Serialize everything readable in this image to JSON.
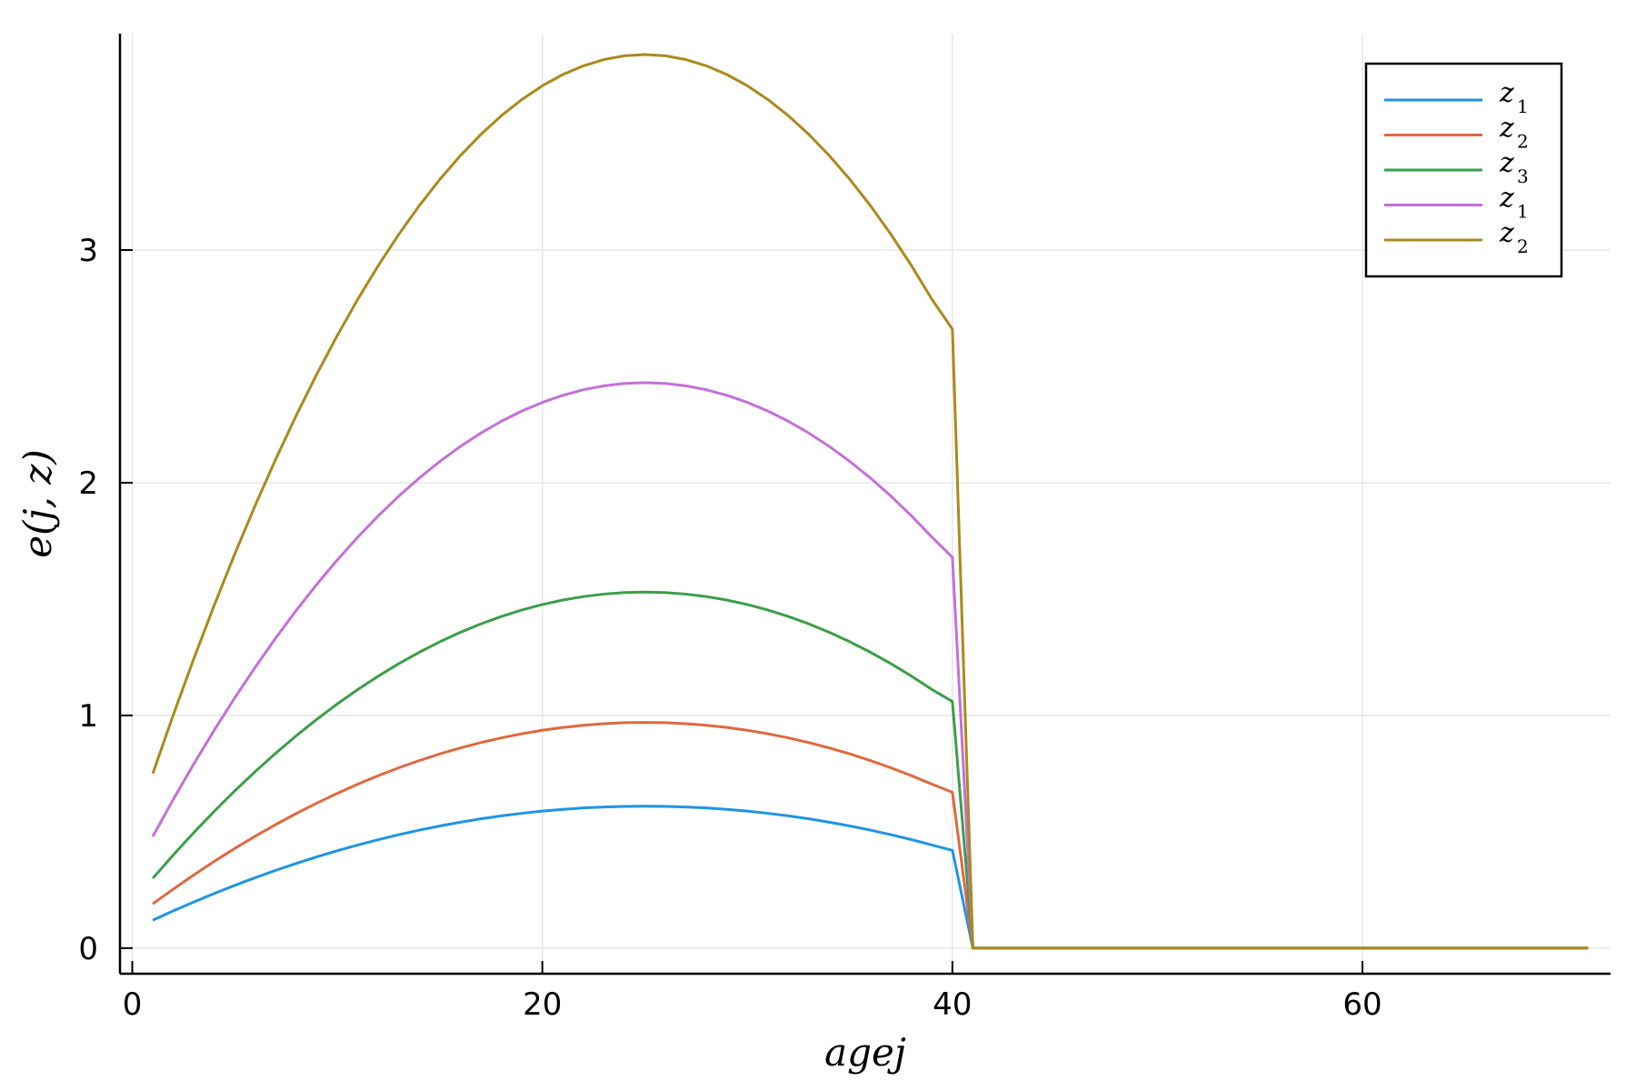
{
  "chart_data": {
    "type": "line",
    "title": "",
    "xlabel": "agej",
    "ylabel": "e(j, z)",
    "xlim": [
      -0.6,
      72.1
    ],
    "ylim": [
      -0.11,
      3.93
    ],
    "xticks": [
      0,
      20,
      40,
      60
    ],
    "yticks": [
      0,
      1,
      2,
      3
    ],
    "grid": true,
    "legend_position": "top-right",
    "x_start": 1,
    "x_step": 1,
    "age_peak": 25,
    "age_last_work": 40,
    "age_end": 71,
    "series": [
      {
        "name": "z",
        "subscript": "1",
        "color": "#1f94e4",
        "start": 0.12,
        "peak": 0.61,
        "at_40": 0.42
      },
      {
        "name": "z",
        "subscript": "2",
        "color": "#e0683e",
        "start": 0.19,
        "peak": 0.97,
        "at_40": 0.67
      },
      {
        "name": "z",
        "subscript": "3",
        "color": "#3b9e4a",
        "start": 0.3,
        "peak": 1.53,
        "at_40": 1.06
      },
      {
        "name": "z",
        "subscript": "1",
        "color": "#c470d8",
        "start": 0.48,
        "peak": 2.43,
        "at_40": 1.68
      },
      {
        "name": "z",
        "subscript": "2",
        "color": "#aa8a1c",
        "start": 0.75,
        "peak": 3.84,
        "at_40": 2.66
      }
    ]
  }
}
